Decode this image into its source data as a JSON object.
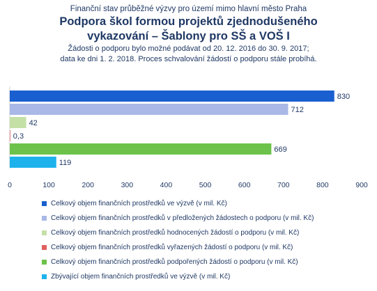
{
  "header": {
    "suptitle": "Finanční stav průběžné výzvy pro území mimo hlavní město Praha",
    "title_line1": "Podpora škol formou projektů zjednodušeného",
    "title_line2": "vykazování – Šablony pro SŠ a VOŠ I",
    "note_line1": "Žádosti o podporu bylo možné podávat od 20. 12. 2016 do 30. 9. 2017;",
    "note_line2": "data ke dni 1. 2. 2018. Proces schvalování žádostí o podporu stále probíhá."
  },
  "chart_data": {
    "type": "bar",
    "orientation": "horizontal",
    "title": "Podpora škol formou projektů zjednodušeného vykazování – Šablony pro SŠ a VOŠ I",
    "xlim": [
      0,
      900
    ],
    "x_ticks": [
      0,
      100,
      200,
      300,
      400,
      500,
      600,
      700,
      800,
      900
    ],
    "grid": false,
    "legend_position": "bottom",
    "series": [
      {
        "name": "Celkový objem finančních prostředků ve výzvě (v mil. Kč)",
        "value": 830,
        "label": "830",
        "color": "#1a5fd0"
      },
      {
        "name": "Celkový objem finančních prostředků v předložených žádostech o podporu (v mil. Kč)",
        "value": 712,
        "label": "712",
        "color": "#a9b8e6"
      },
      {
        "name": "Celkový objem finančních prostředků hodnocených žádostí o podporu (v mil. Kč)",
        "value": 42,
        "label": "42",
        "color": "#c4e0a6"
      },
      {
        "name": "Celkový objem finančních prostředků vyřazených žádostí o podporu (v mil. Kč)",
        "value": 0.3,
        "label": "0,3",
        "color": "#e06060"
      },
      {
        "name": "Celkový objem finančních prostředků podpořených žádostí o podporu (v mil. Kč)",
        "value": 669,
        "label": "669",
        "color": "#6cc24a"
      },
      {
        "name": "Zbývající objem finančních prostředků ve výzvě (v mil. Kč)",
        "value": 119,
        "label": "119",
        "color": "#1eb2ec"
      }
    ]
  }
}
